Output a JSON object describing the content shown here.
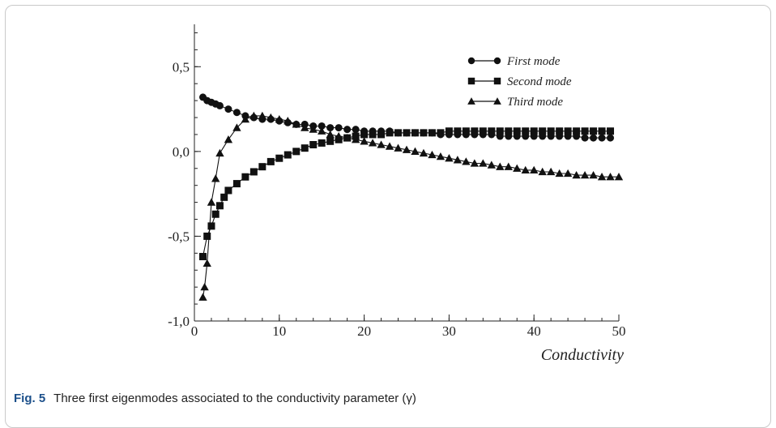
{
  "figure": {
    "label": "Fig. 5",
    "caption": "Three first eigenmodes associated to the conductivity parameter (γ)"
  },
  "chart_data": {
    "type": "line",
    "title": "",
    "xlabel": "Conductivity",
    "ylabel": "",
    "xlim": [
      0,
      50
    ],
    "ylim": [
      -1.0,
      0.75
    ],
    "x_ticks": [
      0,
      10,
      20,
      30,
      40,
      50
    ],
    "x_tick_labels": [
      "0",
      "10",
      "20",
      "30",
      "40",
      "50"
    ],
    "y_ticks": [
      -1.0,
      -0.5,
      0.0,
      0.5
    ],
    "y_tick_labels": [
      "-1,0",
      "-0,5",
      "0,0",
      "0,5"
    ],
    "legend_position": "top-right",
    "series": [
      {
        "name": "First mode",
        "marker": "circle",
        "x": [
          1,
          1.5,
          2,
          2.5,
          3,
          4,
          5,
          6,
          7,
          8,
          9,
          10,
          11,
          12,
          13,
          14,
          15,
          16,
          17,
          18,
          19,
          20,
          21,
          22,
          23,
          24,
          25,
          26,
          27,
          28,
          29,
          30,
          31,
          32,
          33,
          34,
          35,
          36,
          37,
          38,
          39,
          40,
          41,
          42,
          43,
          44,
          45,
          46,
          47,
          48,
          49
        ],
        "y": [
          0.32,
          0.3,
          0.29,
          0.28,
          0.27,
          0.25,
          0.23,
          0.21,
          0.2,
          0.19,
          0.19,
          0.18,
          0.17,
          0.16,
          0.16,
          0.15,
          0.15,
          0.14,
          0.14,
          0.13,
          0.13,
          0.12,
          0.12,
          0.12,
          0.12,
          0.11,
          0.11,
          0.11,
          0.11,
          0.11,
          0.1,
          0.1,
          0.1,
          0.1,
          0.1,
          0.1,
          0.1,
          0.09,
          0.09,
          0.09,
          0.09,
          0.09,
          0.09,
          0.09,
          0.09,
          0.09,
          0.09,
          0.08,
          0.08,
          0.08,
          0.08
        ]
      },
      {
        "name": "Second mode",
        "marker": "square",
        "x": [
          1,
          1.5,
          2,
          2.5,
          3,
          3.5,
          4,
          5,
          6,
          7,
          8,
          9,
          10,
          11,
          12,
          13,
          14,
          15,
          16,
          17,
          18,
          19,
          20,
          21,
          22,
          23,
          24,
          25,
          26,
          27,
          28,
          29,
          30,
          31,
          32,
          33,
          34,
          35,
          36,
          37,
          38,
          39,
          40,
          41,
          42,
          43,
          44,
          45,
          46,
          47,
          48,
          49
        ],
        "y": [
          -0.62,
          -0.5,
          -0.44,
          -0.37,
          -0.32,
          -0.27,
          -0.23,
          -0.19,
          -0.15,
          -0.12,
          -0.09,
          -0.06,
          -0.04,
          -0.02,
          0.0,
          0.02,
          0.04,
          0.05,
          0.06,
          0.07,
          0.08,
          0.09,
          0.1,
          0.1,
          0.1,
          0.11,
          0.11,
          0.11,
          0.11,
          0.11,
          0.11,
          0.11,
          0.12,
          0.12,
          0.12,
          0.12,
          0.12,
          0.12,
          0.12,
          0.12,
          0.12,
          0.12,
          0.12,
          0.12,
          0.12,
          0.12,
          0.12,
          0.12,
          0.12,
          0.12,
          0.12,
          0.12
        ]
      },
      {
        "name": "Third mode",
        "marker": "triangle",
        "x": [
          1,
          1.2,
          1.5,
          2,
          2.5,
          3,
          4,
          5,
          6,
          7,
          8,
          9,
          10,
          11,
          12,
          13,
          14,
          15,
          16,
          17,
          18,
          19,
          20,
          21,
          22,
          23,
          24,
          25,
          26,
          27,
          28,
          29,
          30,
          31,
          32,
          33,
          34,
          35,
          36,
          37,
          38,
          39,
          40,
          41,
          42,
          43,
          44,
          45,
          46,
          47,
          48,
          49,
          50
        ],
        "y": [
          -0.86,
          -0.8,
          -0.66,
          -0.3,
          -0.16,
          -0.01,
          0.07,
          0.14,
          0.19,
          0.21,
          0.21,
          0.2,
          0.19,
          0.18,
          0.16,
          0.14,
          0.13,
          0.12,
          0.1,
          0.09,
          0.08,
          0.07,
          0.06,
          0.05,
          0.04,
          0.03,
          0.02,
          0.01,
          0.0,
          -0.01,
          -0.02,
          -0.03,
          -0.04,
          -0.05,
          -0.06,
          -0.07,
          -0.07,
          -0.08,
          -0.09,
          -0.09,
          -0.1,
          -0.11,
          -0.11,
          -0.12,
          -0.12,
          -0.13,
          -0.13,
          -0.14,
          -0.14,
          -0.14,
          -0.15,
          -0.15,
          -0.15
        ]
      }
    ]
  }
}
